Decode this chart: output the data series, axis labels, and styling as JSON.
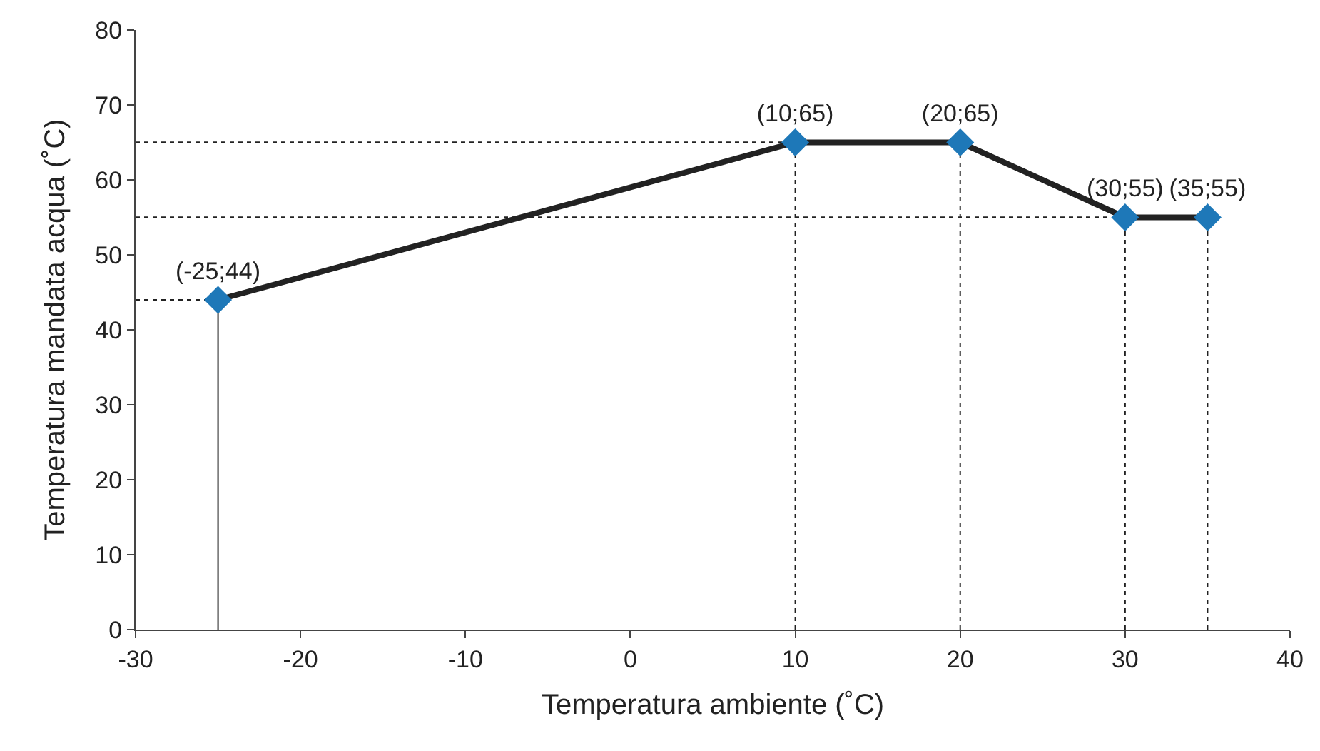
{
  "chart_data": {
    "type": "line",
    "xlabel": "Temperatura ambiente (˚C)",
    "ylabel": "Temperatura mandata acqua (˚C)",
    "x": [
      -25,
      10,
      20,
      30,
      35
    ],
    "series": [
      {
        "color": "#222222",
        "values": [
          44,
          65,
          65,
          55,
          55
        ],
        "value_labels": [
          "(-25;44)",
          "(10;65)",
          "(20;65)",
          "(30;55)",
          "(35;55)"
        ]
      }
    ],
    "marker": "diamond",
    "line_style": "solid",
    "legend": false,
    "xlim": [
      -30,
      40
    ],
    "xticks": [
      -30,
      -20,
      -10,
      0,
      10,
      20,
      30,
      40
    ],
    "ylim": [
      0,
      80
    ],
    "yticks": [
      0,
      10,
      20,
      30,
      40,
      50,
      60,
      70,
      80
    ]
  }
}
